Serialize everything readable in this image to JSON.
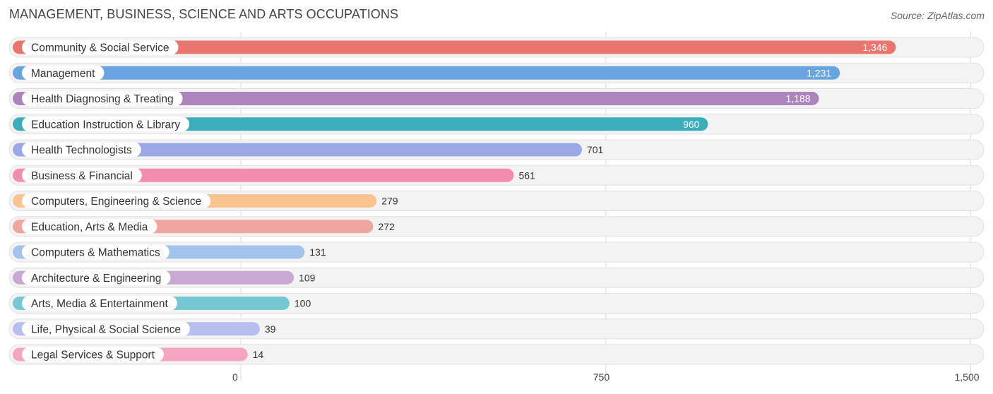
{
  "header": {
    "title": "MANAGEMENT, BUSINESS, SCIENCE AND ARTS OCCUPATIONS",
    "source": "Source: ZipAtlas.com"
  },
  "chart_data": {
    "type": "bar",
    "orientation": "horizontal",
    "title": "MANAGEMENT, BUSINESS, SCIENCE AND ARTS OCCUPATIONS",
    "xlim": [
      0,
      1500
    ],
    "ticks": [
      0,
      750,
      1500
    ],
    "tick_labels": [
      "0",
      "750",
      "1,500"
    ],
    "grid": true,
    "categories": [
      "Community & Social Service",
      "Management",
      "Health Diagnosing & Treating",
      "Education Instruction & Library",
      "Health Technologists",
      "Business & Financial",
      "Computers, Engineering & Science",
      "Education, Arts & Media",
      "Computers & Mathematics",
      "Architecture & Engineering",
      "Arts, Media & Entertainment",
      "Life, Physical & Social Science",
      "Legal Services & Support"
    ],
    "values": [
      1346,
      1231,
      1188,
      960,
      701,
      561,
      279,
      272,
      131,
      109,
      100,
      39,
      14
    ],
    "value_labels": [
      "1,346",
      "1,231",
      "1,188",
      "960",
      "701",
      "561",
      "279",
      "272",
      "131",
      "109",
      "100",
      "39",
      "14"
    ],
    "colors": [
      "#e8766f",
      "#6aa4e0",
      "#ad84bc",
      "#3aaebb",
      "#9aa8e6",
      "#f38caf",
      "#f9c48f",
      "#efa6a0",
      "#a3c3ec",
      "#c9a8d3",
      "#74c8d1",
      "#b6bfee",
      "#f6a4c2"
    ]
  }
}
